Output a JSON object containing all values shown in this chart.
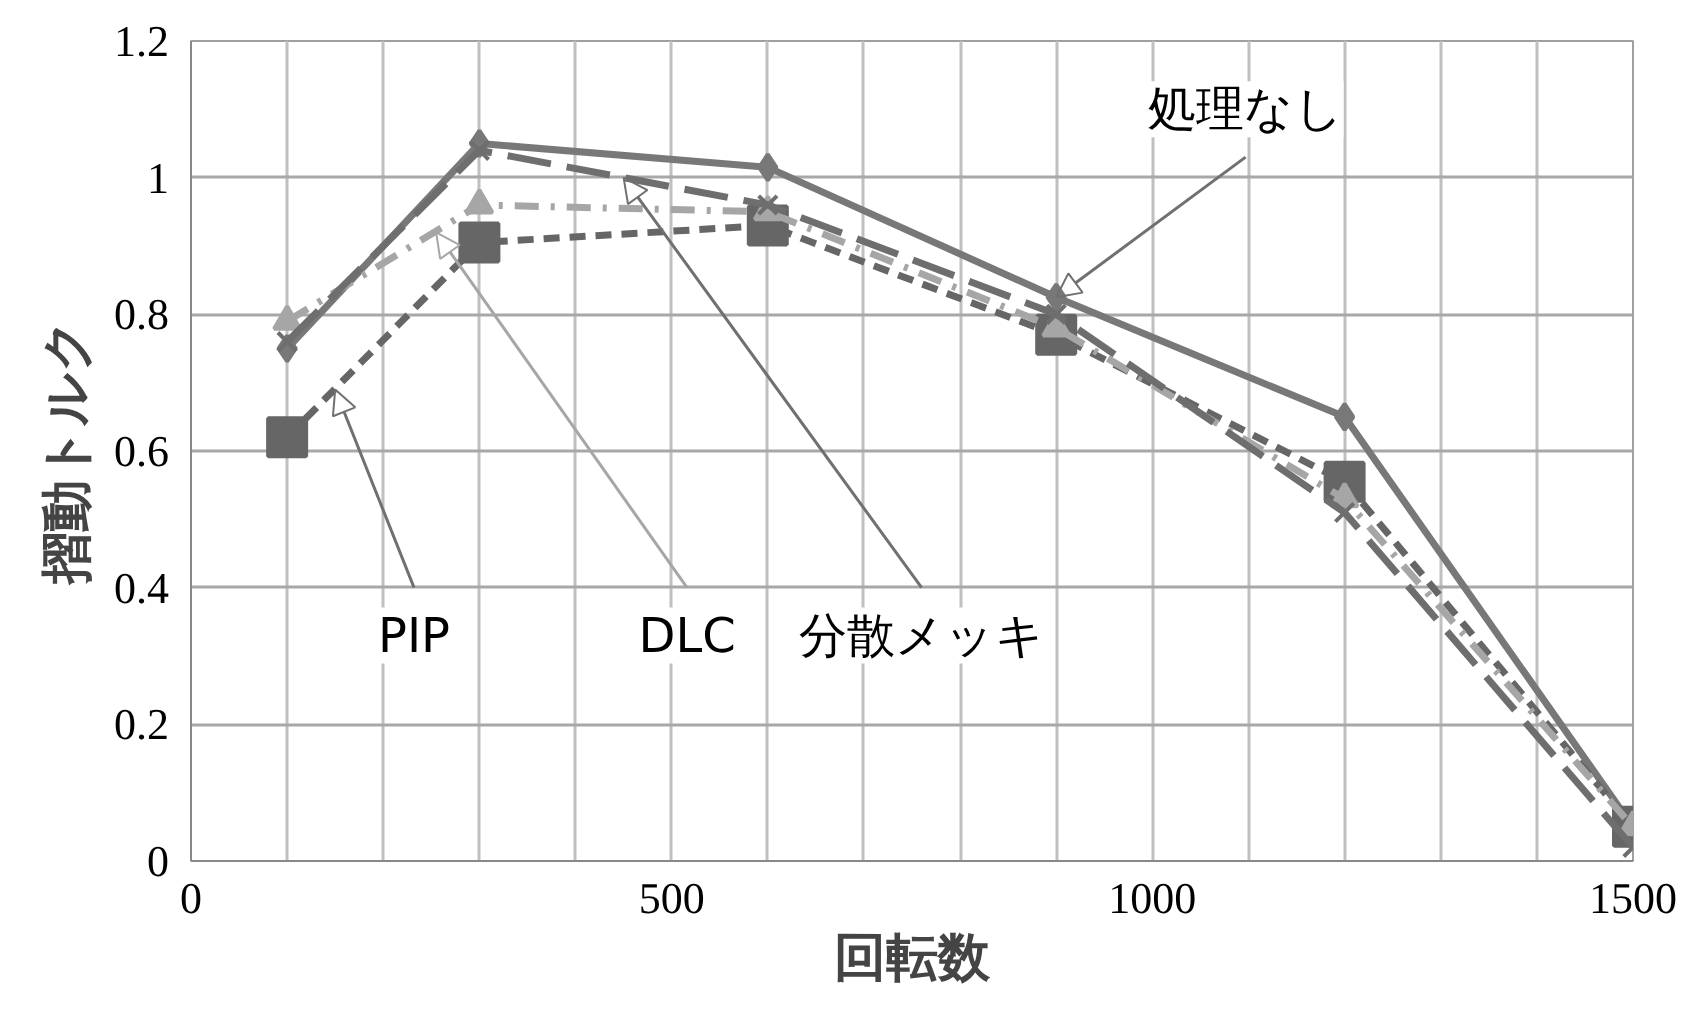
{
  "chart_data": {
    "type": "line",
    "xlabel": "回転数",
    "ylabel": "摺動トルク",
    "x": [
      100,
      300,
      600,
      900,
      1200,
      1500
    ],
    "series": [
      {
        "color": "#787878",
        "values": [
          0.75,
          1.05,
          1.015,
          0.825,
          0.65,
          0.05
        ],
        "marker": "diamond",
        "line_style": "solid"
      },
      {
        "color": "#666666",
        "values": [
          0.62,
          0.905,
          0.93,
          0.77,
          0.555,
          0.05
        ],
        "marker": "square",
        "line_style": "dashed"
      },
      {
        "color": "#a6a6a6",
        "values": [
          0.79,
          0.96,
          0.95,
          0.78,
          0.53,
          0.05
        ],
        "marker": "triangle",
        "line_style": "dashdot"
      },
      {
        "color": "#6e6e6e",
        "values": [
          0.76,
          1.04,
          0.96,
          0.8,
          0.51,
          0.02
        ],
        "marker": "cross",
        "line_style": "longdash"
      }
    ],
    "xlim": [
      0,
      1500
    ],
    "ylim": [
      0,
      1.2
    ],
    "xticks": [
      0,
      500,
      1000,
      1500
    ],
    "yticks": [
      0,
      0.2,
      0.4,
      0.6,
      0.8,
      1,
      1.2
    ],
    "grid": true,
    "annotations": [
      {
        "text": "処理なし",
        "x": 900,
        "y": 0.825
      },
      {
        "text": "PIP",
        "x": 150,
        "y": 0.69
      },
      {
        "text": "DLC",
        "x": 255,
        "y": 0.92
      },
      {
        "text": "分散メッキ",
        "x": 450,
        "y": 1.0
      }
    ]
  }
}
